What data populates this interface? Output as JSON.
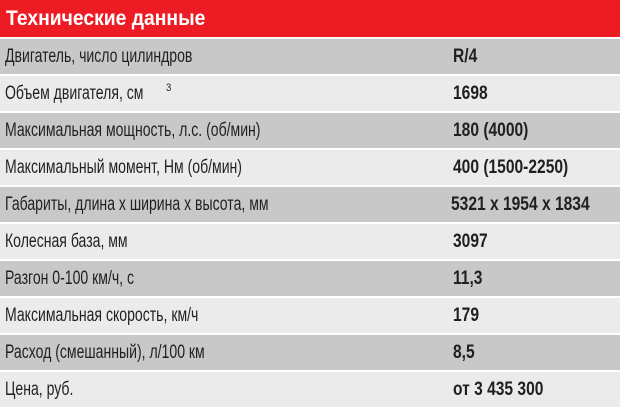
{
  "title": "Технические данные",
  "rows": [
    {
      "label": "Двигатель, число цилиндров",
      "value": "R/4"
    },
    {
      "label": "Объем двигателя, см",
      "sup": "3",
      "value": "1698"
    },
    {
      "label": "Максимальная мощность, л.с. (об/мин)",
      "value": "180 (4000)"
    },
    {
      "label": "Максимальный момент, Нм (об/мин)",
      "value": "400 (1500-2250)"
    },
    {
      "label": "Габариты, длина х ширина х высота, мм",
      "value": "5321 x 1954 x 1834"
    },
    {
      "label": "Колесная база, мм",
      "value": "3097"
    },
    {
      "label": "Разгон 0-100 км/ч, с",
      "value": "11,3"
    },
    {
      "label": "Максимальная скорость, км/ч",
      "value": "179"
    },
    {
      "label": "Расход (смешанный), л/100 км",
      "value": "8,5"
    },
    {
      "label": "Цена, руб.",
      "value": "от 3 435 300"
    }
  ],
  "colors": {
    "header": "#ed1c24",
    "row_dark": "#c8c8c8",
    "row_light": "#ebebeb"
  }
}
